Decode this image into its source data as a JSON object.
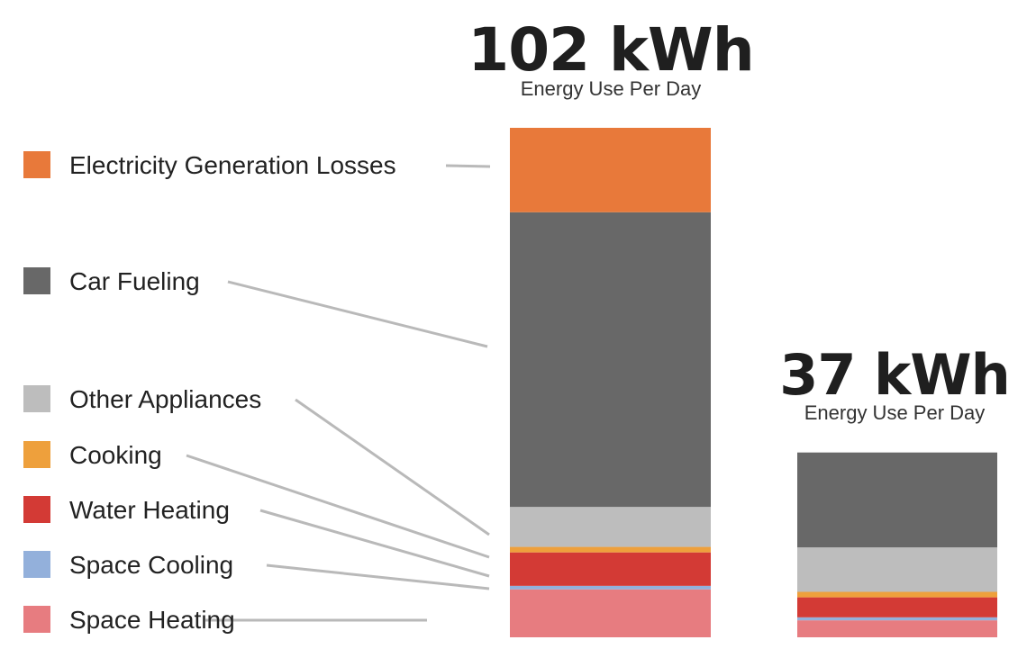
{
  "chart_data": {
    "type": "bar",
    "stacked": true,
    "series_legend": [
      {
        "name": "Electricity Generation Losses",
        "color": "#E8793A"
      },
      {
        "name": "Car Fueling",
        "color": "#686868"
      },
      {
        "name": "Other Appliances",
        "color": "#BDBDBD"
      },
      {
        "name": "Cooking",
        "color": "#EEA03C"
      },
      {
        "name": "Water Heating",
        "color": "#D33A35"
      },
      {
        "name": "Space Cooling",
        "color": "#93B0DB"
      },
      {
        "name": "Space Heating",
        "color": "#E77C80"
      }
    ],
    "bars": [
      {
        "total_label": "102 kWh",
        "subtitle": "Energy Use Per Day",
        "total": 102,
        "segments": [
          {
            "name": "Space Heating",
            "value": 9.6
          },
          {
            "name": "Space Cooling",
            "value": 0.7
          },
          {
            "name": "Water Heating",
            "value": 6.7
          },
          {
            "name": "Cooking",
            "value": 1.1
          },
          {
            "name": "Other Appliances",
            "value": 8.0
          },
          {
            "name": "Car Fueling",
            "value": 59.0
          },
          {
            "name": "Electricity Generation Losses",
            "value": 16.9
          }
        ]
      },
      {
        "total_label": "37 kWh",
        "subtitle": "Energy Use Per Day",
        "total": 37,
        "segments": [
          {
            "name": "Space Heating",
            "value": 3.4
          },
          {
            "name": "Space Cooling",
            "value": 0.6
          },
          {
            "name": "Water Heating",
            "value": 4.0
          },
          {
            "name": "Cooking",
            "value": 1.1
          },
          {
            "name": "Other Appliances",
            "value": 8.9
          },
          {
            "name": "Car Fueling",
            "value": 19.0
          }
        ]
      }
    ]
  }
}
